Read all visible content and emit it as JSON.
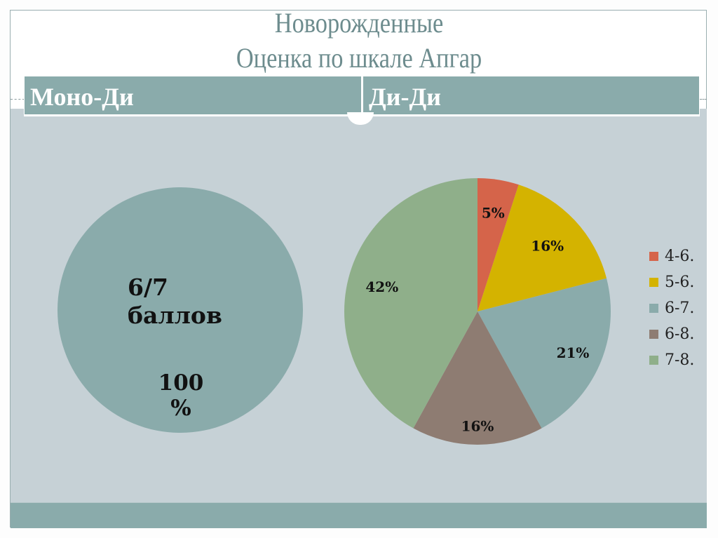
{
  "title": {
    "line1": "Новорожденные",
    "line2": "Оценка по шкале Апгар"
  },
  "header": {
    "left": "Моно-Ди",
    "right": "Ди-Ди"
  },
  "mono_di": {
    "score_line1": "6/7",
    "score_line2": "баллов",
    "pct_line1": "100",
    "pct_line2": "%",
    "color": "#8aabab"
  },
  "legend": {
    "items": [
      {
        "label": "4-6.",
        "color": "#d5644a"
      },
      {
        "label": "5-6.",
        "color": "#d4b300"
      },
      {
        "label": "6-7.",
        "color": "#8aabab"
      },
      {
        "label": "6-8.",
        "color": "#8e7c72"
      },
      {
        "label": "7-8.",
        "color": "#8faf8a"
      }
    ]
  },
  "chart_data": [
    {
      "type": "pie",
      "title": "Моно-Ди",
      "categories": [
        "6/7 баллов"
      ],
      "values": [
        100
      ],
      "labels": [
        "100 %"
      ],
      "colors": [
        "#8aabab"
      ]
    },
    {
      "type": "pie",
      "title": "Ди-Ди",
      "categories": [
        "4-6.",
        "5-6.",
        "6-7.",
        "6-8.",
        "7-8."
      ],
      "values": [
        5,
        16,
        21,
        16,
        42
      ],
      "labels": [
        "5%",
        "16%",
        "21%",
        "16%",
        "42%"
      ],
      "colors": [
        "#d5644a",
        "#d4b300",
        "#8aabab",
        "#8e7c72",
        "#8faf8a"
      ],
      "legend_position": "right"
    }
  ]
}
